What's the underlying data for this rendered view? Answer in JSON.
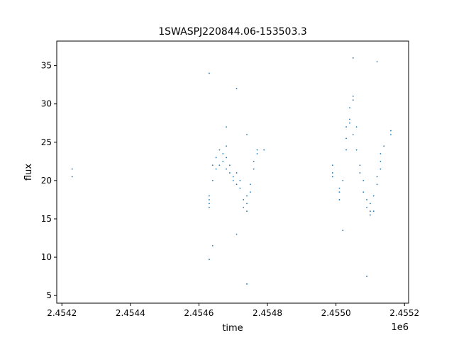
{
  "chart_data": {
    "type": "scatter",
    "title": "1SWASPJ220844.06-153503.3",
    "xlabel": "time",
    "ylabel": "flux",
    "x_offset_label": "1e6",
    "xlim": [
      2.454185,
      2.455212
    ],
    "ylim": [
      4.0,
      38.2
    ],
    "x_ticks": [
      2.4542,
      2.4544,
      2.4546,
      2.4548,
      2.455,
      2.4552
    ],
    "x_tick_labels": [
      "2.4542",
      "2.4544",
      "2.4546",
      "2.4548",
      "2.4550",
      "2.4552"
    ],
    "y_ticks": [
      5,
      10,
      15,
      20,
      25,
      30,
      35
    ],
    "y_tick_labels": [
      "5",
      "10",
      "15",
      "20",
      "25",
      "30",
      "35"
    ],
    "grid": false,
    "legend": "none",
    "point_color": "#1f77b4",
    "series": [
      {
        "values": [
          [
            2.45423,
            21.5
          ],
          [
            2.45423,
            20.5
          ],
          [
            2.45463,
            17.5
          ],
          [
            2.45463,
            16.5
          ],
          [
            2.45463,
            18.0
          ],
          [
            2.45463,
            17.0
          ],
          [
            2.45464,
            22.0
          ],
          [
            2.45464,
            20.0
          ],
          [
            2.45464,
            11.5
          ],
          [
            2.45463,
            9.7
          ],
          [
            2.45463,
            34.0
          ],
          [
            2.45465,
            23.0
          ],
          [
            2.45465,
            21.5
          ],
          [
            2.45466,
            22.0
          ],
          [
            2.45466,
            24.0
          ],
          [
            2.45467,
            22.5
          ],
          [
            2.45467,
            23.5
          ],
          [
            2.45468,
            23.0
          ],
          [
            2.45468,
            24.5
          ],
          [
            2.45468,
            21.5
          ],
          [
            2.45468,
            27.0
          ],
          [
            2.45469,
            22.0
          ],
          [
            2.45469,
            21.0
          ],
          [
            2.4547,
            20.5
          ],
          [
            2.4547,
            20.0
          ],
          [
            2.45471,
            19.5
          ],
          [
            2.45471,
            21.0
          ],
          [
            2.45472,
            20.0
          ],
          [
            2.45472,
            19.0
          ],
          [
            2.45471,
            13.0
          ],
          [
            2.45471,
            32.0
          ],
          [
            2.45473,
            17.5
          ],
          [
            2.45473,
            16.5
          ],
          [
            2.45474,
            17.0
          ],
          [
            2.45474,
            18.0
          ],
          [
            2.45474,
            16.0
          ],
          [
            2.45475,
            18.5
          ],
          [
            2.45475,
            19.5
          ],
          [
            2.45476,
            21.5
          ],
          [
            2.45476,
            22.5
          ],
          [
            2.45477,
            23.5
          ],
          [
            2.45477,
            24.0
          ],
          [
            2.45474,
            6.5
          ],
          [
            2.45474,
            26.0
          ],
          [
            2.45479,
            24.0
          ],
          [
            2.45499,
            21.0
          ],
          [
            2.45499,
            20.5
          ],
          [
            2.45499,
            22.0
          ],
          [
            2.45501,
            19.0
          ],
          [
            2.45501,
            18.5
          ],
          [
            2.45501,
            17.5
          ],
          [
            2.45502,
            20.0
          ],
          [
            2.45502,
            13.5
          ],
          [
            2.45503,
            24.0
          ],
          [
            2.45503,
            25.5
          ],
          [
            2.45503,
            27.0
          ],
          [
            2.45504,
            27.5
          ],
          [
            2.45504,
            28.0
          ],
          [
            2.45504,
            29.5
          ],
          [
            2.45505,
            30.5
          ],
          [
            2.45505,
            31.0
          ],
          [
            2.45505,
            26.0
          ],
          [
            2.45506,
            27.0
          ],
          [
            2.45505,
            36.0
          ],
          [
            2.45506,
            24.0
          ],
          [
            2.45507,
            22.0
          ],
          [
            2.45507,
            21.0
          ],
          [
            2.45508,
            20.0
          ],
          [
            2.45508,
            18.5
          ],
          [
            2.45509,
            17.5
          ],
          [
            2.45509,
            16.5
          ],
          [
            2.4551,
            16.0
          ],
          [
            2.4551,
            15.5
          ],
          [
            2.4551,
            17.0
          ],
          [
            2.45511,
            16.0
          ],
          [
            2.45511,
            18.0
          ],
          [
            2.45512,
            19.5
          ],
          [
            2.45512,
            20.5
          ],
          [
            2.45513,
            21.5
          ],
          [
            2.45513,
            22.5
          ],
          [
            2.45513,
            23.5
          ],
          [
            2.45514,
            24.5
          ],
          [
            2.45509,
            7.5
          ],
          [
            2.45512,
            35.5
          ],
          [
            2.45516,
            26.5
          ],
          [
            2.45516,
            26.0
          ]
        ]
      }
    ]
  }
}
